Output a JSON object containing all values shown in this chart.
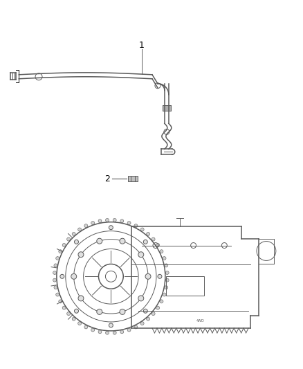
{
  "background_color": "#ffffff",
  "line_color": "#5a5a5a",
  "label_color": "#000000",
  "fig_width": 4.38,
  "fig_height": 5.33,
  "dpi": 100,
  "item1_label": "1",
  "item2_label": "2"
}
